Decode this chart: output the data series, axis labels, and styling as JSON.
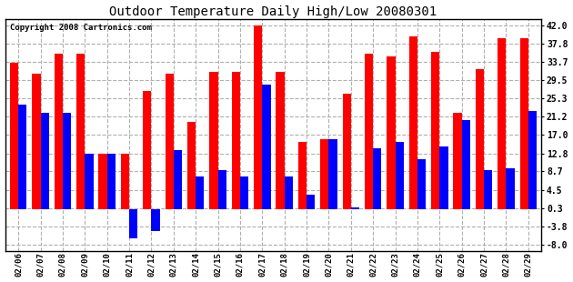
{
  "title": "Outdoor Temperature Daily High/Low 20080301",
  "copyright": "Copyright 2008 Cartronics.com",
  "dates": [
    "02/06",
    "02/07",
    "02/08",
    "02/09",
    "02/10",
    "02/11",
    "02/12",
    "02/13",
    "02/14",
    "02/15",
    "02/16",
    "02/17",
    "02/18",
    "02/19",
    "02/20",
    "02/21",
    "02/22",
    "02/23",
    "02/24",
    "02/25",
    "02/26",
    "02/27",
    "02/28",
    "02/29"
  ],
  "highs": [
    33.5,
    31.0,
    35.5,
    35.5,
    12.8,
    12.8,
    27.0,
    31.0,
    20.0,
    31.5,
    31.5,
    42.0,
    31.5,
    15.5,
    16.0,
    26.5,
    35.5,
    35.0,
    39.5,
    36.0,
    22.0,
    32.0,
    39.0,
    39.0
  ],
  "lows": [
    24.0,
    22.0,
    22.0,
    12.8,
    12.8,
    -6.5,
    -5.0,
    13.5,
    7.5,
    9.0,
    7.5,
    28.5,
    7.5,
    3.5,
    16.0,
    0.5,
    14.0,
    15.5,
    11.5,
    14.5,
    20.5,
    9.0,
    9.5,
    22.5
  ],
  "high_color": "#ff0000",
  "low_color": "#0000ff",
  "bg_color": "#ffffff",
  "grid_color": "#b0b0b0",
  "yticks": [
    42.0,
    37.8,
    33.7,
    29.5,
    25.3,
    21.2,
    17.0,
    12.8,
    8.7,
    4.5,
    0.3,
    -3.8,
    -8.0
  ],
  "ylim": [
    -9.5,
    43.5
  ],
  "bar_width": 0.38
}
